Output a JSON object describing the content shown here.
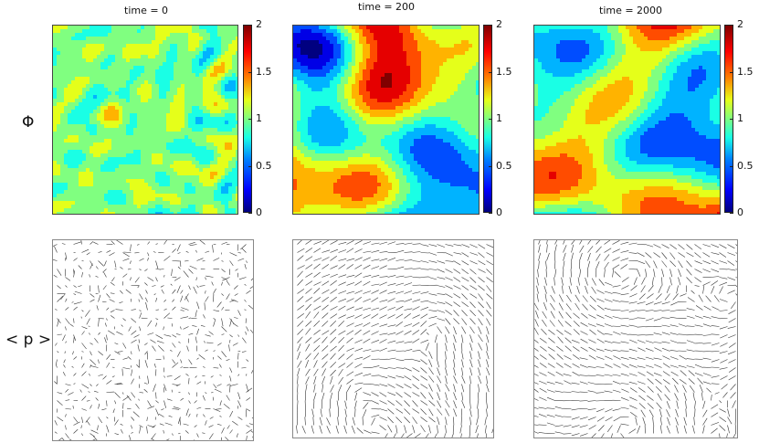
{
  "row_labels": {
    "top": "Φ",
    "bottom": "< p >"
  },
  "chart_data": [
    {
      "type": "heatmap",
      "title": "time = 0",
      "colorbar": {
        "min": 0,
        "max": 2,
        "ticks": [
          "0",
          "0.5",
          "1",
          "1.5",
          "2"
        ]
      },
      "colormap": "jet",
      "typical_range": [
        0.7,
        1.3
      ]
    },
    {
      "type": "heatmap",
      "title": "time = 200",
      "colorbar": {
        "min": 0,
        "max": 2,
        "ticks": [
          "0",
          "0.5",
          "1",
          "1.5",
          "2"
        ]
      },
      "colormap": "jet",
      "typical_range": [
        0.1,
        1.9
      ]
    },
    {
      "type": "heatmap",
      "title": "time = 2000",
      "colorbar": {
        "min": 0,
        "max": 2,
        "ticks": [
          "0",
          "0.5",
          "1",
          "1.5",
          "2"
        ]
      },
      "colormap": "jet",
      "typical_range": [
        0.1,
        2.0
      ]
    },
    {
      "type": "quiver",
      "field": "< p >",
      "time": "0",
      "pattern": "disordered"
    },
    {
      "type": "quiver",
      "field": "< p >",
      "time": "200",
      "pattern": "vortices"
    },
    {
      "type": "quiver",
      "field": "< p >",
      "time": "2000",
      "pattern": "vortices"
    }
  ],
  "colors": {
    "min": "#00007f",
    "mid": "#7fff7f",
    "max": "#7f0000",
    "arrow": "#333333"
  }
}
